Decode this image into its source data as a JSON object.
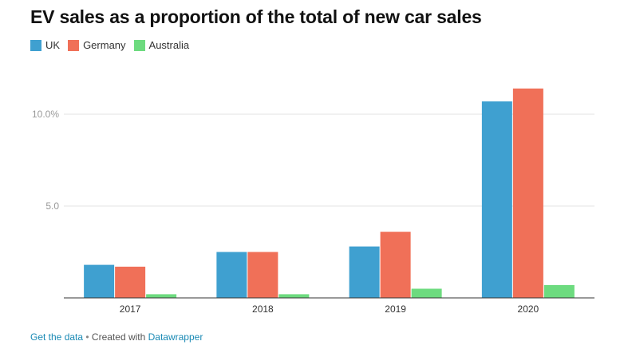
{
  "chart_data": {
    "type": "bar",
    "title": "EV sales as a proportion of the total of new car sales",
    "categories": [
      "2017",
      "2018",
      "2019",
      "2020"
    ],
    "series": [
      {
        "name": "UK",
        "color": "#3fa0d0",
        "values": [
          1.8,
          2.5,
          2.8,
          10.7
        ]
      },
      {
        "name": "Germany",
        "color": "#f07058",
        "values": [
          1.7,
          2.5,
          3.6,
          11.4
        ]
      },
      {
        "name": "Australia",
        "color": "#6ddb7f",
        "values": [
          0.2,
          0.2,
          0.5,
          0.7
        ]
      }
    ],
    "y_ticks": [
      {
        "value": 5,
        "label": "5.0"
      },
      {
        "value": 10,
        "label": "10.0%"
      }
    ],
    "xlabel": "",
    "ylabel": "",
    "ylim": [
      0,
      14
    ],
    "grid": true,
    "legend_position": "top-left"
  },
  "footer": {
    "get_data": "Get the data",
    "separator": " • ",
    "created_with": "Created with ",
    "tool": "Datawrapper"
  }
}
